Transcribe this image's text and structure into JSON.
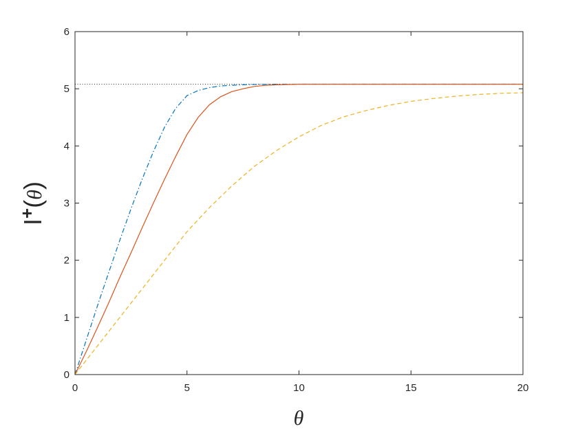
{
  "chart_data": {
    "type": "line",
    "xlabel": "θ",
    "ylabel": {
      "base": "I",
      "sup": "+",
      "paren_open": "(",
      "var": "θ",
      "paren_close": ")"
    },
    "xlim": [
      0,
      20
    ],
    "ylim": [
      0,
      6
    ],
    "xticks": [
      0,
      5,
      10,
      15,
      20
    ],
    "yticks": [
      0,
      1,
      2,
      3,
      4,
      5,
      6
    ],
    "xtick_labels": [
      "0",
      "5",
      "10",
      "15",
      "20"
    ],
    "ytick_labels": [
      "0",
      "1",
      "2",
      "3",
      "4",
      "5",
      "6"
    ],
    "grid": false,
    "asymptote": {
      "y": 5.08,
      "color": "#333333",
      "style": "dotted"
    },
    "series": [
      {
        "color": "#0072BD",
        "style": "dashdot",
        "x": [
          0,
          0.5,
          1,
          1.5,
          2,
          2.5,
          3,
          3.5,
          4,
          4.5,
          5,
          5.5,
          6,
          6.5,
          7,
          7.5,
          8,
          9,
          10,
          12,
          14,
          16,
          18,
          20
        ],
        "y": [
          0,
          0.6,
          1.2,
          1.78,
          2.35,
          2.9,
          3.42,
          3.9,
          4.33,
          4.66,
          4.88,
          4.97,
          5.02,
          5.05,
          5.06,
          5.07,
          5.075,
          5.08,
          5.08,
          5.08,
          5.08,
          5.08,
          5.08,
          5.08
        ]
      },
      {
        "color": "#D95319",
        "style": "solid",
        "x": [
          0,
          0.5,
          1,
          1.5,
          2,
          2.5,
          3,
          3.5,
          4,
          4.5,
          5,
          5.5,
          6,
          6.5,
          7,
          7.5,
          8,
          8.5,
          9,
          10,
          11,
          12,
          14,
          16,
          18,
          20
        ],
        "y": [
          0,
          0.4,
          0.82,
          1.25,
          1.7,
          2.13,
          2.57,
          3.0,
          3.42,
          3.82,
          4.2,
          4.5,
          4.72,
          4.86,
          4.95,
          5.0,
          5.04,
          5.06,
          5.07,
          5.08,
          5.08,
          5.08,
          5.08,
          5.08,
          5.08,
          5.08
        ]
      },
      {
        "color": "#EDB120",
        "style": "dashed",
        "x": [
          0,
          1,
          2,
          3,
          4,
          5,
          6,
          7,
          8,
          9,
          10,
          11,
          12,
          13,
          14,
          15,
          16,
          17,
          18,
          19,
          20
        ],
        "y": [
          0,
          0.5,
          1.0,
          1.5,
          2.0,
          2.5,
          2.92,
          3.3,
          3.64,
          3.92,
          4.16,
          4.36,
          4.51,
          4.62,
          4.71,
          4.78,
          4.83,
          4.87,
          4.9,
          4.92,
          4.93
        ]
      }
    ]
  }
}
